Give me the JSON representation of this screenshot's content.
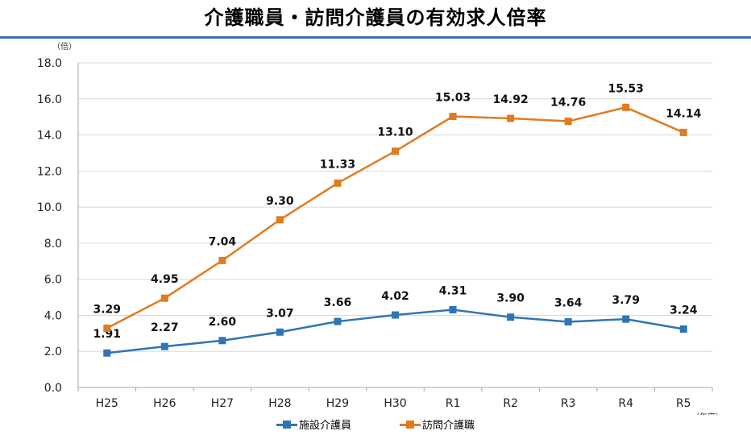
{
  "title": "介護職員・訪問介護員の有効求人倍率",
  "colors": {
    "facility": "#2e75b6",
    "visiting": "#e07b20",
    "rule": "#3c6fb6"
  },
  "chart_data": {
    "type": "line",
    "categories": [
      "H25",
      "H26",
      "H27",
      "H28",
      "H29",
      "H30",
      "R1",
      "R2",
      "R3",
      "R4",
      "R5"
    ],
    "series": [
      {
        "name": "施設介護員",
        "values": [
          1.91,
          2.27,
          2.6,
          3.07,
          3.66,
          4.02,
          4.31,
          3.9,
          3.64,
          3.79,
          3.24
        ],
        "labels": [
          "1.91",
          "2.27",
          "2.60",
          "3.07",
          "3.66",
          "4.02",
          "4.31",
          "3.90",
          "3.64",
          "3.79",
          "3.24"
        ]
      },
      {
        "name": "訪問介護職",
        "values": [
          3.29,
          4.95,
          7.04,
          9.3,
          11.33,
          13.1,
          15.03,
          14.92,
          14.76,
          15.53,
          14.14
        ],
        "labels": [
          "3.29",
          "4.95",
          "7.04",
          "9.30",
          "11.33",
          "13.10",
          "15.03",
          "14.92",
          "14.76",
          "15.53",
          "14.14"
        ]
      }
    ],
    "y_ticks": [
      "0.0",
      "2.0",
      "4.0",
      "6.0",
      "8.0",
      "10.0",
      "12.0",
      "14.0",
      "16.0",
      "18.0"
    ],
    "ylim": [
      0,
      18
    ],
    "ylabel": "（倍）",
    "xlabel": "（年度）",
    "grid": true,
    "legend_position": "bottom"
  }
}
